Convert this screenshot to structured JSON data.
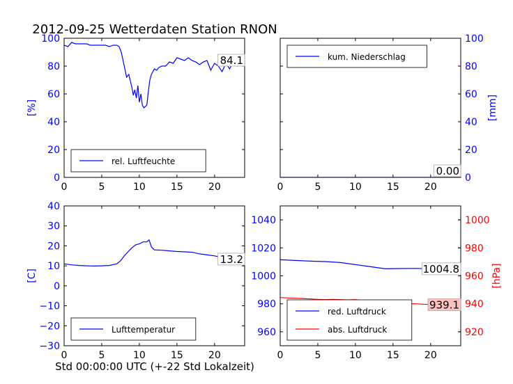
{
  "title": "2012-09-25 Wetterdaten Station RNON",
  "xlabel": "Std 00:00:00 UTC (+-22 Std Lokalzeit)",
  "colors": {
    "blue": "#0000ff",
    "red": "#ff0000",
    "black": "#000000"
  },
  "chart_data": [
    {
      "type": "line",
      "panel": "top-left",
      "ylabel": "[%]",
      "ylim": [
        0,
        100
      ],
      "xlim": [
        0,
        24
      ],
      "xticks": [
        "0",
        "5",
        "10",
        "15",
        "20"
      ],
      "yticks": [
        "0",
        "20",
        "40",
        "60",
        "80",
        "100"
      ],
      "legend": {
        "placement": "lower-left",
        "entries": [
          "rel. Luftfeuchte"
        ]
      },
      "annotation": "84.1",
      "series": [
        {
          "name": "rel. Luftfeuchte",
          "color": "#0000ff",
          "x": [
            0,
            0.5,
            1,
            1.5,
            2,
            2.5,
            3,
            3.5,
            4,
            4.5,
            5,
            5.5,
            6,
            6.5,
            7,
            7.3,
            7.6,
            8,
            8.3,
            8.6,
            9,
            9.2,
            9.4,
            9.6,
            9.8,
            10,
            10.2,
            10.4,
            10.6,
            10.8,
            11,
            11.2,
            11.4,
            11.6,
            11.8,
            12,
            12.3,
            12.6,
            13,
            13.5,
            14,
            14.5,
            15,
            15.5,
            16,
            16.5,
            17,
            17.5,
            18,
            18.5,
            19,
            19.5,
            20,
            20.5,
            21,
            21.5,
            22,
            22.5,
            23,
            23.5,
            24
          ],
          "y": [
            95,
            94,
            97,
            96,
            96,
            96,
            96,
            95,
            95,
            95,
            95,
            95,
            94,
            95,
            95,
            94,
            90,
            80,
            72,
            74,
            65,
            59,
            63,
            57,
            66,
            54,
            60,
            52,
            50,
            51,
            52,
            62,
            70,
            74,
            76,
            78,
            77,
            79,
            80,
            80,
            83,
            82,
            86,
            85,
            84,
            86,
            84,
            83,
            81,
            83,
            84,
            77,
            82,
            80,
            76,
            82,
            78,
            83,
            80,
            85,
            84
          ]
        }
      ]
    },
    {
      "type": "line",
      "panel": "top-right",
      "ylabel": "[mm]",
      "ylim": [
        0,
        100
      ],
      "xlim": [
        0,
        24
      ],
      "xticks": [
        "0",
        "5",
        "10",
        "15",
        "20"
      ],
      "yticks": [
        "0",
        "20",
        "40",
        "60",
        "80",
        "100"
      ],
      "legend": {
        "placement": "upper-left",
        "entries": [
          "kum. Niederschlag"
        ]
      },
      "annotation": "0.00",
      "series": [
        {
          "name": "kum. Niederschlag",
          "color": "#0000ff",
          "x": [
            0,
            24
          ],
          "y": [
            0,
            0
          ]
        }
      ]
    },
    {
      "type": "line",
      "panel": "bottom-left",
      "ylabel": "[C]",
      "ylim": [
        -30,
        40
      ],
      "xlim": [
        0,
        24
      ],
      "xticks": [
        "0",
        "5",
        "10",
        "15",
        "20"
      ],
      "yticks": [
        "−30",
        "−20",
        "−10",
        "0",
        "10",
        "20",
        "30",
        "40"
      ],
      "legend": {
        "placement": "lower-left",
        "entries": [
          "Lufttemperatur"
        ]
      },
      "annotation": "13.2",
      "series": [
        {
          "name": "Lufttemperatur",
          "color": "#0000ff",
          "x": [
            0,
            1,
            2,
            3,
            4,
            5,
            6,
            7,
            7.5,
            8,
            8.5,
            9,
            9.5,
            10,
            10.5,
            11,
            11.3,
            11.6,
            12,
            13,
            14,
            15,
            16,
            17,
            18,
            19,
            20,
            21,
            22,
            23,
            24
          ],
          "y": [
            11,
            10.5,
            10.2,
            10,
            9.9,
            10,
            10.2,
            11,
            12.5,
            15,
            17,
            19,
            20.5,
            21,
            22,
            22,
            23,
            19.5,
            18,
            17.8,
            17.5,
            17.2,
            17,
            16.8,
            16,
            15.5,
            15,
            14.2,
            13.8,
            13.4,
            13.2
          ]
        }
      ]
    },
    {
      "type": "line",
      "panel": "bottom-right",
      "ylim": [
        950,
        1050
      ],
      "y2label": "[hPa]",
      "y2lim": [
        910,
        1010
      ],
      "xlim": [
        0,
        24
      ],
      "xticks": [
        "0",
        "5",
        "10",
        "15",
        "20"
      ],
      "yticks": [
        "960",
        "980",
        "1000",
        "1020",
        "1040"
      ],
      "y2ticks": [
        "920",
        "940",
        "960",
        "980",
        "1000"
      ],
      "legend": {
        "placement": "lower-left",
        "entries": [
          "red. Luftdruck",
          "abs. Luftdruck"
        ]
      },
      "annotations": [
        "1004.8",
        "939.1"
      ],
      "series": [
        {
          "name": "red. Luftdruck",
          "color": "#0000ff",
          "axis": "left",
          "x": [
            0,
            2,
            4,
            6,
            8,
            10,
            12,
            14,
            16,
            18,
            20,
            22,
            24
          ],
          "y": [
            1011.5,
            1011,
            1010.5,
            1010.2,
            1009.5,
            1008,
            1006.5,
            1005,
            1005.2,
            1005.3,
            1005,
            1004.9,
            1004.8
          ]
        },
        {
          "name": "abs. Luftdruck",
          "color": "#ff0000",
          "axis": "right",
          "x": [
            0,
            1,
            2,
            3,
            4,
            5,
            6,
            7,
            8,
            9,
            10,
            11,
            11.5,
            12,
            13,
            14,
            15,
            16,
            17,
            18,
            19,
            20,
            21,
            22,
            23,
            24
          ],
          "y": [
            944.5,
            944.2,
            944,
            943.8,
            943.5,
            943.2,
            943,
            943.2,
            943,
            942.8,
            943,
            942.5,
            941.5,
            940.8,
            940.2,
            940,
            939.9,
            940,
            940.1,
            940,
            939.7,
            939.5,
            939.4,
            939.3,
            939.2,
            939.1
          ]
        }
      ]
    }
  ]
}
